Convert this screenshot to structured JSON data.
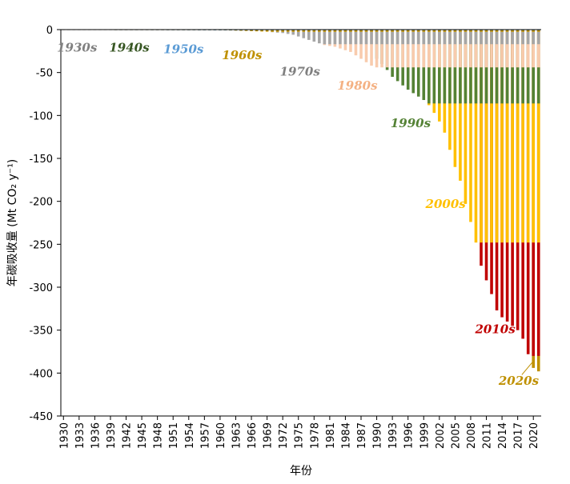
{
  "chart_data": {
    "type": "bar",
    "xlabel": "年份",
    "ylabel": "年碳吸收量 (Mt CO₂ y⁻¹)",
    "ylim": [
      -450,
      0
    ],
    "yticks": [
      0,
      -50,
      -100,
      -150,
      -200,
      -250,
      -300,
      -350,
      -400,
      -450
    ],
    "x_tick_labels": [
      "1930",
      "1933",
      "1936",
      "1939",
      "1942",
      "1945",
      "1948",
      "1951",
      "1954",
      "1957",
      "1960",
      "1963",
      "1966",
      "1969",
      "1972",
      "1975",
      "1978",
      "1981",
      "1984",
      "1987",
      "1990",
      "1993",
      "1996",
      "1999",
      "2002",
      "2005",
      "2008",
      "2011",
      "2014",
      "2017",
      "2020"
    ],
    "years": [
      1930,
      1931,
      1932,
      1933,
      1934,
      1935,
      1936,
      1937,
      1938,
      1939,
      1940,
      1941,
      1942,
      1943,
      1944,
      1945,
      1946,
      1947,
      1948,
      1949,
      1950,
      1951,
      1952,
      1953,
      1954,
      1955,
      1956,
      1957,
      1958,
      1959,
      1960,
      1961,
      1962,
      1963,
      1964,
      1965,
      1966,
      1967,
      1968,
      1969,
      1970,
      1971,
      1972,
      1973,
      1974,
      1975,
      1976,
      1977,
      1978,
      1979,
      1980,
      1981,
      1982,
      1983,
      1984,
      1985,
      1986,
      1987,
      1988,
      1989,
      1990,
      1991,
      1992,
      1993,
      1994,
      1995,
      1996,
      1997,
      1998,
      1999,
      2000,
      2001,
      2002,
      2003,
      2004,
      2005,
      2006,
      2007,
      2008,
      2009,
      2010,
      2011,
      2012,
      2013,
      2014,
      2015,
      2016,
      2017,
      2018,
      2019,
      2020,
      2021
    ],
    "series": [
      {
        "name": "1930s",
        "color": "#808080",
        "values": [
          -0.3,
          -0.3,
          -0.4,
          -0.4,
          -0.4,
          -0.5,
          -0.5,
          -0.5,
          -0.5,
          -0.5,
          -0.5,
          -0.5,
          -0.5,
          -0.5,
          -0.5,
          -0.5,
          -0.5,
          -0.5,
          -0.5,
          -0.5,
          -0.5,
          -0.5,
          -0.5,
          -0.5,
          -0.5,
          -0.5,
          -0.5,
          -0.5,
          -0.5,
          -0.5,
          -0.5,
          -0.5,
          -0.5,
          -0.5,
          -0.5,
          -0.5,
          -0.5,
          -0.5,
          -0.5,
          -0.5,
          -0.5,
          -0.5,
          -0.5,
          -0.5,
          -0.5,
          -0.5,
          -0.5,
          -0.5,
          -0.5,
          -0.5,
          -0.5,
          -0.5,
          -0.5,
          -0.5,
          -0.5,
          -0.5,
          -0.5,
          -0.5,
          -0.5,
          -0.5,
          -0.5,
          -0.5,
          -0.5,
          -0.5,
          -0.5,
          -0.5,
          -0.5,
          -0.5,
          -0.5,
          -0.5,
          -0.5,
          -0.5,
          -0.5,
          -0.5,
          -0.5,
          -0.5,
          -0.5,
          -0.5,
          -0.5,
          -0.5,
          -0.5,
          -0.5,
          -0.5,
          -0.5,
          -0.5,
          -0.5,
          -0.5,
          -0.5,
          -0.5,
          -0.5,
          -0.5,
          -0.5
        ]
      },
      {
        "name": "1940s",
        "color": "#375623",
        "values": [
          0,
          0,
          0,
          0,
          0,
          0,
          0,
          0,
          0,
          0,
          -0.3,
          -0.3,
          -0.4,
          -0.4,
          -0.5,
          -0.5,
          -0.5,
          -0.6,
          -0.6,
          -0.6,
          -0.6,
          -0.6,
          -0.6,
          -0.6,
          -0.6,
          -0.6,
          -0.6,
          -0.6,
          -0.6,
          -0.6,
          -0.6,
          -0.6,
          -0.6,
          -0.6,
          -0.6,
          -0.6,
          -0.6,
          -0.6,
          -0.6,
          -0.6,
          -0.6,
          -0.6,
          -0.6,
          -0.6,
          -0.6,
          -0.6,
          -0.6,
          -0.6,
          -0.6,
          -0.6,
          -0.6,
          -0.6,
          -0.6,
          -0.6,
          -0.6,
          -0.6,
          -0.6,
          -0.6,
          -0.6,
          -0.6,
          -0.6,
          -0.6,
          -0.6,
          -0.6,
          -0.6,
          -0.6,
          -0.6,
          -0.6,
          -0.6,
          -0.6,
          -0.6,
          -0.6,
          -0.6,
          -0.6,
          -0.6,
          -0.6,
          -0.6,
          -0.6,
          -0.6,
          -0.6,
          -0.6,
          -0.6,
          -0.6,
          -0.6,
          -0.6,
          -0.6,
          -0.6,
          -0.6,
          -0.6,
          -0.6,
          -0.6,
          -0.6
        ]
      },
      {
        "name": "1950s",
        "color": "#5B9BD5",
        "values": [
          0,
          0,
          0,
          0,
          0,
          0,
          0,
          0,
          0,
          0,
          0,
          0,
          0,
          0,
          0,
          0,
          0,
          0,
          0,
          0,
          -0.3,
          -0.4,
          -0.5,
          -0.5,
          -0.6,
          -0.6,
          -0.7,
          -0.7,
          -0.7,
          -0.8,
          -0.8,
          -0.8,
          -0.8,
          -0.8,
          -0.8,
          -0.8,
          -0.8,
          -0.8,
          -0.8,
          -0.8,
          -0.8,
          -0.8,
          -0.8,
          -0.8,
          -0.8,
          -0.8,
          -0.8,
          -0.8,
          -0.8,
          -0.8,
          -0.8,
          -0.8,
          -0.8,
          -0.8,
          -0.8,
          -0.8,
          -0.8,
          -0.8,
          -0.8,
          -0.8,
          -0.8,
          -0.8,
          -0.8,
          -0.8,
          -0.8,
          -0.8,
          -0.8,
          -0.8,
          -0.8,
          -0.8,
          -0.8,
          -0.8,
          -0.8,
          -0.8,
          -0.8,
          -0.8,
          -0.8,
          -0.8,
          -0.8,
          -0.8,
          -0.8,
          -0.8,
          -0.8,
          -0.8,
          -0.8,
          -0.8,
          -0.8,
          -0.8,
          -0.8,
          -0.8,
          -0.8,
          -0.8
        ]
      },
      {
        "name": "1960s",
        "color": "#BF9000",
        "values": [
          0,
          0,
          0,
          0,
          0,
          0,
          0,
          0,
          0,
          0,
          0,
          0,
          0,
          0,
          0,
          0,
          0,
          0,
          0,
          0,
          0,
          0,
          0,
          0,
          0,
          0,
          0,
          0,
          0,
          0,
          -0.6,
          -0.8,
          -1.0,
          -1.2,
          -1.4,
          -1.6,
          -1.8,
          -2.0,
          -2.2,
          -2.4,
          -2.5,
          -2.5,
          -2.5,
          -2.5,
          -2.5,
          -2.5,
          -2.5,
          -2.5,
          -2.5,
          -2.5,
          -2.5,
          -2.5,
          -2.5,
          -2.5,
          -2.5,
          -2.5,
          -2.5,
          -2.5,
          -2.5,
          -2.5,
          -2.5,
          -2.5,
          -2.5,
          -2.5,
          -2.5,
          -2.5,
          -2.5,
          -2.5,
          -2.5,
          -2.5,
          -2.5,
          -2.5,
          -2.5,
          -2.5,
          -2.5,
          -2.5,
          -2.5,
          -2.5,
          -2.5,
          -2.5,
          -2.5,
          -2.5,
          -2.5,
          -2.5,
          -2.5,
          -2.5,
          -2.5,
          -2.5,
          -2.5,
          -2.5,
          -2.5,
          -2.5
        ]
      },
      {
        "name": "1970s",
        "color": "#A6A6A6",
        "values": [
          0,
          0,
          0,
          0,
          0,
          0,
          0,
          0,
          0,
          0,
          0,
          0,
          0,
          0,
          0,
          0,
          0,
          0,
          0,
          0,
          0,
          0,
          0,
          0,
          0,
          0,
          0,
          0,
          0,
          0,
          0,
          0,
          0,
          0,
          0,
          0,
          0,
          0,
          0,
          0,
          -3,
          -3.5,
          -4,
          -5,
          -6,
          -8,
          -10,
          -12,
          -14,
          -16,
          -17,
          -17,
          -17,
          -17,
          -17,
          -17,
          -17,
          -17,
          -17,
          -17,
          -17,
          -17,
          -17,
          -17,
          -17,
          -17,
          -17,
          -17,
          -17,
          -17,
          -17,
          -17,
          -17,
          -17,
          -17,
          -17,
          -17,
          -17,
          -17,
          -17,
          -17,
          -17,
          -17,
          -17,
          -17,
          -17,
          -17,
          -17,
          -17,
          -17,
          -17,
          -17
        ]
      },
      {
        "name": "1980s",
        "color": "#F8CBAD",
        "values": [
          0,
          0,
          0,
          0,
          0,
          0,
          0,
          0,
          0,
          0,
          0,
          0,
          0,
          0,
          0,
          0,
          0,
          0,
          0,
          0,
          0,
          0,
          0,
          0,
          0,
          0,
          0,
          0,
          0,
          0,
          0,
          0,
          0,
          0,
          0,
          0,
          0,
          0,
          0,
          0,
          0,
          0,
          0,
          0,
          0,
          0,
          0,
          0,
          0,
          0,
          -18,
          -19,
          -20,
          -22,
          -24,
          -26,
          -30,
          -34,
          -38,
          -42,
          -44,
          -44,
          -44,
          -44,
          -44,
          -44,
          -44,
          -44,
          -44,
          -44,
          -44,
          -44,
          -44,
          -44,
          -44,
          -44,
          -44,
          -44,
          -44,
          -44,
          -44,
          -44,
          -44,
          -44,
          -44,
          -44,
          -44,
          -44,
          -44,
          -44,
          -44,
          -44
        ]
      },
      {
        "name": "1990s",
        "color": "#548235",
        "values": [
          0,
          0,
          0,
          0,
          0,
          0,
          0,
          0,
          0,
          0,
          0,
          0,
          0,
          0,
          0,
          0,
          0,
          0,
          0,
          0,
          0,
          0,
          0,
          0,
          0,
          0,
          0,
          0,
          0,
          0,
          0,
          0,
          0,
          0,
          0,
          0,
          0,
          0,
          0,
          0,
          0,
          0,
          0,
          0,
          0,
          0,
          0,
          0,
          0,
          0,
          0,
          0,
          0,
          0,
          0,
          0,
          0,
          0,
          0,
          0,
          -34,
          -40,
          -47,
          -55,
          -60,
          -65,
          -70,
          -74,
          -78,
          -82,
          -86,
          -86,
          -86,
          -86,
          -86,
          -86,
          -86,
          -86,
          -86,
          -86,
          -86,
          -86,
          -86,
          -86,
          -86,
          -86,
          -86,
          -86,
          -86,
          -86,
          -86,
          -86
        ]
      },
      {
        "name": "2000s",
        "color": "#FFC000",
        "values": [
          0,
          0,
          0,
          0,
          0,
          0,
          0,
          0,
          0,
          0,
          0,
          0,
          0,
          0,
          0,
          0,
          0,
          0,
          0,
          0,
          0,
          0,
          0,
          0,
          0,
          0,
          0,
          0,
          0,
          0,
          0,
          0,
          0,
          0,
          0,
          0,
          0,
          0,
          0,
          0,
          0,
          0,
          0,
          0,
          0,
          0,
          0,
          0,
          0,
          0,
          0,
          0,
          0,
          0,
          0,
          0,
          0,
          0,
          0,
          0,
          0,
          0,
          0,
          0,
          0,
          0,
          0,
          0,
          0,
          0,
          -88,
          -97,
          -107,
          -120,
          -140,
          -160,
          -176,
          -203,
          -224,
          -248,
          -248,
          -248,
          -248,
          -248,
          -248,
          -248,
          -248,
          -248,
          -248,
          -248,
          -248,
          -248
        ]
      },
      {
        "name": "2010s",
        "color": "#C00000",
        "values": [
          0,
          0,
          0,
          0,
          0,
          0,
          0,
          0,
          0,
          0,
          0,
          0,
          0,
          0,
          0,
          0,
          0,
          0,
          0,
          0,
          0,
          0,
          0,
          0,
          0,
          0,
          0,
          0,
          0,
          0,
          0,
          0,
          0,
          0,
          0,
          0,
          0,
          0,
          0,
          0,
          0,
          0,
          0,
          0,
          0,
          0,
          0,
          0,
          0,
          0,
          0,
          0,
          0,
          0,
          0,
          0,
          0,
          0,
          0,
          0,
          0,
          0,
          0,
          0,
          0,
          0,
          0,
          0,
          0,
          0,
          0,
          0,
          0,
          0,
          0,
          0,
          0,
          0,
          0,
          0,
          -275,
          -292,
          -308,
          -327,
          -335,
          -340,
          -345,
          -350,
          -360,
          -378,
          -380,
          -380
        ]
      },
      {
        "name": "2020s",
        "color": "#BF9000",
        "values": [
          0,
          0,
          0,
          0,
          0,
          0,
          0,
          0,
          0,
          0,
          0,
          0,
          0,
          0,
          0,
          0,
          0,
          0,
          0,
          0,
          0,
          0,
          0,
          0,
          0,
          0,
          0,
          0,
          0,
          0,
          0,
          0,
          0,
          0,
          0,
          0,
          0,
          0,
          0,
          0,
          0,
          0,
          0,
          0,
          0,
          0,
          0,
          0,
          0,
          0,
          0,
          0,
          0,
          0,
          0,
          0,
          0,
          0,
          0,
          0,
          0,
          0,
          0,
          0,
          0,
          0,
          0,
          0,
          0,
          0,
          0,
          0,
          0,
          0,
          0,
          0,
          0,
          0,
          0,
          0,
          0,
          0,
          0,
          0,
          0,
          0,
          0,
          0,
          0,
          0,
          -394,
          -398
        ]
      }
    ],
    "annotations": [
      {
        "text": "1930s",
        "color": "#808080",
        "year": 1932.6,
        "value": -21
      },
      {
        "text": "1940s",
        "color": "#375623",
        "year": 1942.6,
        "value": -21
      },
      {
        "text": "1950s",
        "color": "#5B9BD5",
        "year": 1953,
        "value": -23
      },
      {
        "text": "1960s",
        "color": "#BF9000",
        "year": 1964.2,
        "value": -30
      },
      {
        "text": "1970s",
        "color": "#808080",
        "year": 1975.3,
        "value": -49
      },
      {
        "text": "1980s",
        "color": "#F4B183",
        "year": 1986.3,
        "value": -65
      },
      {
        "text": "1990s",
        "color": "#548235",
        "year": 1996.5,
        "value": -109
      },
      {
        "text": "2000s",
        "color": "#FFC000",
        "year": 2003.2,
        "value": -203
      },
      {
        "text": "2010s",
        "color": "#C00000",
        "year": 2012.7,
        "value": -349
      },
      {
        "text": "2020s",
        "color": "#BF9000",
        "year": 2017.2,
        "value": -409
      }
    ]
  }
}
